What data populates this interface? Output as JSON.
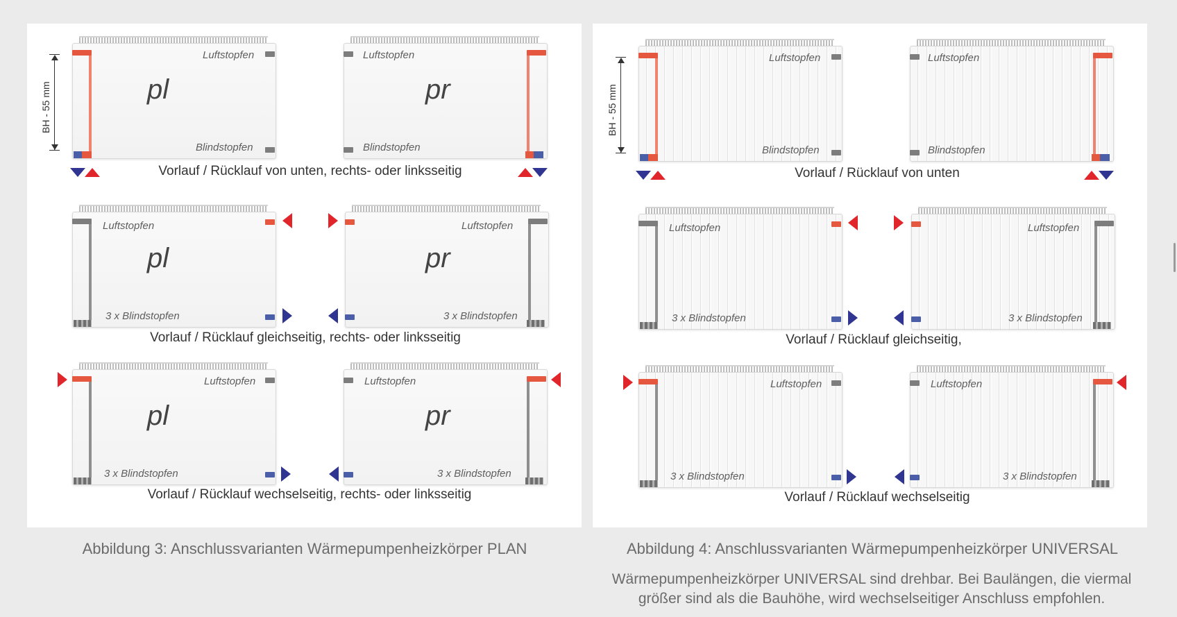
{
  "labels": {
    "luftstopfen": "Luftstopfen",
    "blindstopfen": "Blindstopfen",
    "blindstopfen_3x": "3 x Blindstopfen",
    "pl": "pl",
    "pr": "pr",
    "dimension": "BH - 55 mm"
  },
  "plan": {
    "row1_caption": "Vorlauf / Rücklauf von unten, rechts- oder linksseitig",
    "row2_caption": "Vorlauf / Rücklauf gleichseitig, rechts- oder linksseitig",
    "row3_caption": "Vorlauf / Rücklauf wechselseitig, rechts- oder linksseitig",
    "figure_caption": "Abbildung 3: Anschlussvarianten Wärmepumpenheizkörper PLAN"
  },
  "universal": {
    "row1_caption": "Vorlauf / Rücklauf von unten",
    "row2_caption": "Vorlauf / Rücklauf gleichseitig,",
    "row3_caption": "Vorlauf / Rücklauf wechselseitig",
    "figure_caption": "Abbildung 4: Anschlussvarianten Wärmepumpenheizkörper UNIVERSAL",
    "note": "Wärmepumpenheizkörper UNIVERSAL sind drehbar. Bei Baulängen, die viermal größer sind als die Bauhöhe, wird wechselseitiger Anschluss empfohlen."
  },
  "colors": {
    "flow": "#e0262b",
    "return": "#2f3590",
    "background": "#ebebeb",
    "panel": "#ffffff"
  }
}
